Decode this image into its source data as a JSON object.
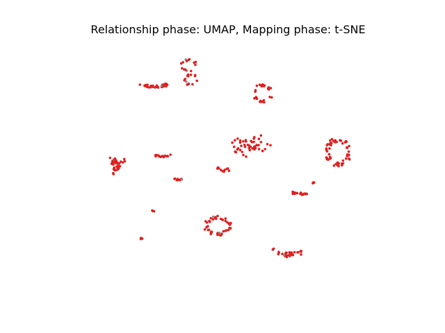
{
  "chart_data": {
    "type": "scatter",
    "title": "Relationship phase: UMAP, Mapping phase: t-SNE",
    "xlabel": "",
    "ylabel": "",
    "axes_visible": false,
    "grid": false,
    "legend": "none",
    "colors": {
      "primary": "#e01f1f",
      "secondary": "#8c8c8c"
    },
    "xlim": [
      0,
      100
    ],
    "ylim": [
      0,
      100
    ],
    "clusters": [
      {
        "cx": 28.4,
        "cy": 82.3,
        "sx": 4.0,
        "sy": 1.0,
        "n": 34,
        "gray": [
          30,
          31
        ],
        "shape": "arc"
      },
      {
        "cx": 38.6,
        "cy": 90.3,
        "sx": 2.2,
        "sy": 2.2,
        "n": 14,
        "gray": [
          3,
          7
        ],
        "shape": "ring"
      },
      {
        "cx": 39.2,
        "cy": 84.6,
        "sx": 1.8,
        "sy": 2.2,
        "n": 14,
        "gray": [
          2
        ],
        "shape": "ring"
      },
      {
        "cx": 60.1,
        "cy": 79.2,
        "sx": 2.6,
        "sy": 3.5,
        "n": 26,
        "gray": [],
        "shape": "ring"
      },
      {
        "cx": 55.4,
        "cy": 58.6,
        "sx": 4.6,
        "sy": 3.3,
        "n": 48,
        "gray": [
          5
        ],
        "shape": "blob"
      },
      {
        "cx": 81.9,
        "cy": 56.3,
        "sx": 3.5,
        "sy": 5.2,
        "n": 56,
        "gray": [
          4
        ],
        "shape": "ring"
      },
      {
        "cx": 18.2,
        "cy": 50.8,
        "sx": 2.5,
        "sy": 3.5,
        "n": 36,
        "gray": [
          6
        ],
        "shape": "triangle"
      },
      {
        "cx": 31.2,
        "cy": 54.8,
        "sx": 2.5,
        "sy": 0.7,
        "n": 14,
        "gray": [],
        "shape": "arc"
      },
      {
        "cx": 35.7,
        "cy": 45.6,
        "sx": 1.3,
        "sy": 0.7,
        "n": 10,
        "gray": [
          9
        ],
        "shape": "arc"
      },
      {
        "cx": 48.9,
        "cy": 49.8,
        "sx": 2.0,
        "sy": 1.2,
        "n": 11,
        "gray": [],
        "shape": "arc"
      },
      {
        "cx": 71.0,
        "cy": 40.2,
        "sx": 2.3,
        "sy": 0.5,
        "n": 20,
        "gray": [],
        "shape": "arc"
      },
      {
        "cx": 74.8,
        "cy": 44.0,
        "sx": 0.4,
        "sy": 0.5,
        "n": 4,
        "gray": [],
        "shape": "blob"
      },
      {
        "cx": 28.3,
        "cy": 33.4,
        "sx": 0.3,
        "sy": 0.3,
        "n": 3,
        "gray": [],
        "shape": "blob"
      },
      {
        "cx": 47.0,
        "cy": 27.5,
        "sx": 3.7,
        "sy": 3.5,
        "n": 44,
        "gray": [
          12,
          25
        ],
        "shape": "ring"
      },
      {
        "cx": 25.1,
        "cy": 22.5,
        "sx": 0.3,
        "sy": 0.3,
        "n": 4,
        "gray": [
          1
        ],
        "shape": "blob"
      },
      {
        "cx": 67.3,
        "cy": 17.0,
        "sx": 4.4,
        "sy": 1.6,
        "n": 30,
        "gray": [
          27
        ],
        "shape": "arc"
      }
    ]
  }
}
